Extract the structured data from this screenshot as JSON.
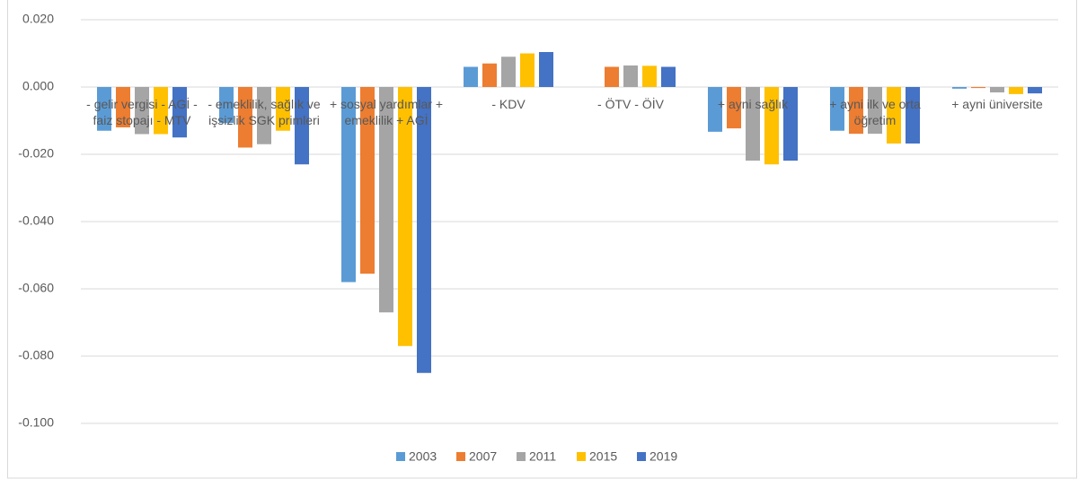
{
  "chart_data": {
    "type": "bar",
    "categories": [
      "- gelir vergisi - AGİ - faiz stopajı - MTV",
      "- emeklilik, sağlık ve işsizlik SGK primleri",
      "+ sosyal yardımlar + emeklilik + AGİ",
      "- KDV",
      "- ÖTV - ÖİV",
      "+ ayni sağlık",
      "+ ayni ilk ve orta öğretim",
      "+ ayni üniversite"
    ],
    "series": [
      {
        "name": "2003",
        "color": "#5b9bd5",
        "values": [
          -0.013,
          -0.0107,
          -0.058,
          0.006,
          null,
          -0.0133,
          -0.013,
          -0.0005
        ]
      },
      {
        "name": "2007",
        "color": "#ed7d31",
        "values": [
          -0.012,
          -0.018,
          -0.0555,
          0.007,
          0.006,
          -0.0123,
          -0.0139,
          -0.0003
        ]
      },
      {
        "name": "2011",
        "color": "#a5a5a5",
        "values": [
          -0.014,
          -0.017,
          -0.067,
          0.009,
          0.0064,
          -0.0219,
          -0.0139,
          -0.0016
        ]
      },
      {
        "name": "2015",
        "color": "#ffc000",
        "values": [
          -0.014,
          -0.013,
          -0.077,
          0.01,
          0.0063,
          -0.023,
          -0.0168,
          -0.0021
        ]
      },
      {
        "name": "2019",
        "color": "#4472c4",
        "values": [
          -0.015,
          -0.023,
          -0.085,
          0.0104,
          0.006,
          -0.0219,
          -0.0168,
          -0.0019
        ]
      }
    ],
    "ylim": [
      -0.1,
      0.02
    ],
    "yticks": [
      {
        "value": 0.02,
        "label": "0.020"
      },
      {
        "value": 0,
        "label": "0.000"
      },
      {
        "value": -0.02,
        "label": "-0.020"
      },
      {
        "value": -0.04,
        "label": "-0.040"
      },
      {
        "value": -0.06,
        "label": "-0.060"
      },
      {
        "value": -0.08,
        "label": "-0.080"
      },
      {
        "value": -0.1,
        "label": "-0.100"
      }
    ],
    "grid": true,
    "legend": "bottom"
  }
}
